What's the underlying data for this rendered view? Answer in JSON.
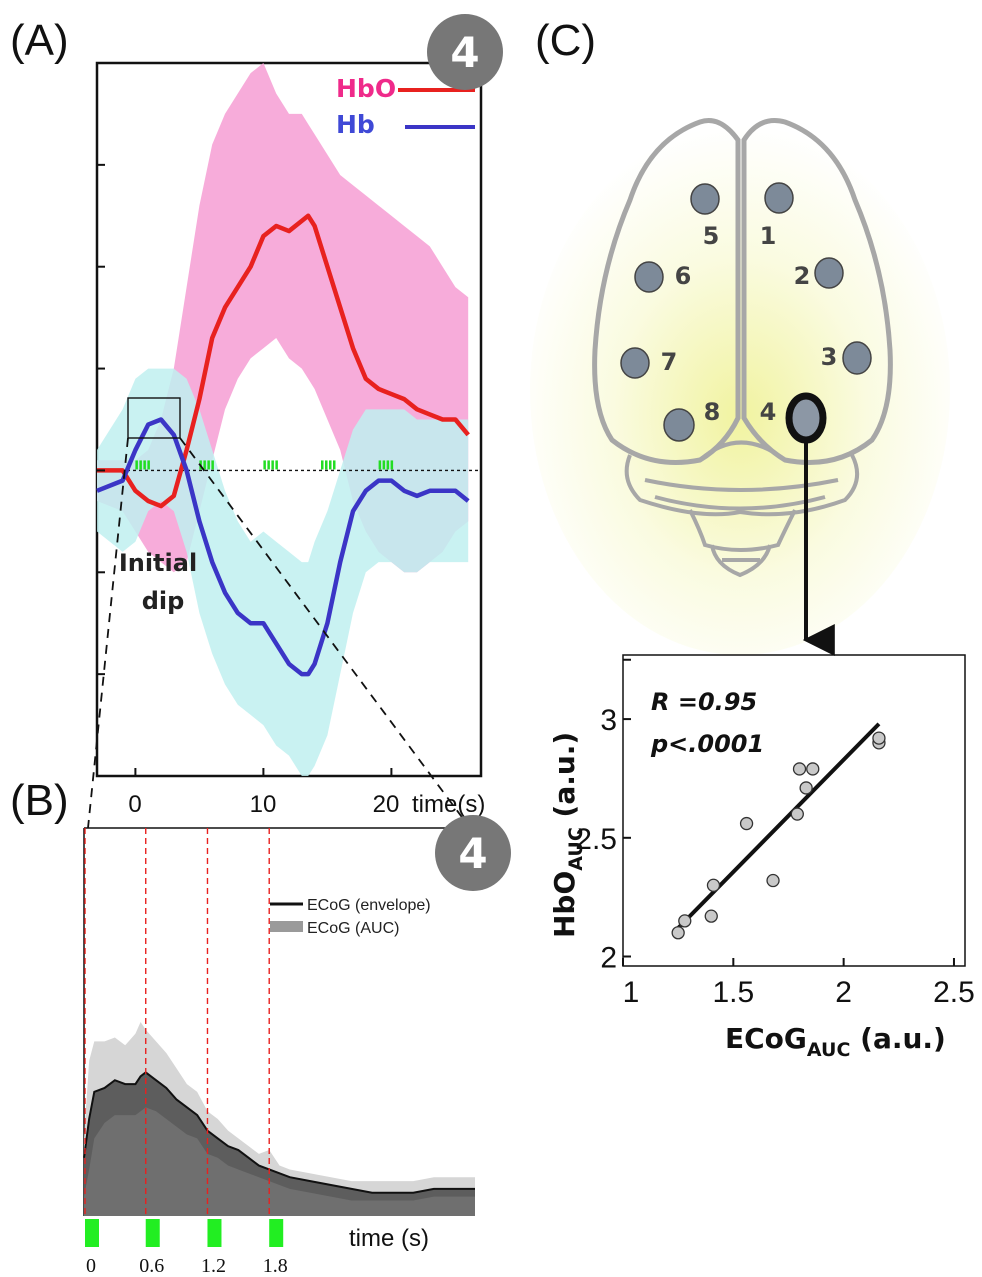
{
  "panels": {
    "A": "(A)",
    "B": "(B)",
    "C": "(C)"
  },
  "badges": {
    "a": "4",
    "b": "4"
  },
  "chart_data": [
    {
      "id": "A",
      "type": "line",
      "xlabel": "time(s)",
      "xticks": [
        "0",
        "10",
        "20"
      ],
      "xlim": [
        -3,
        27
      ],
      "ylim": [
        -3,
        4
      ],
      "legend": [
        "HbO",
        "Hb"
      ],
      "annotation": [
        "Initial",
        "dip"
      ],
      "stim_times": [
        0,
        5,
        10,
        14.5,
        19
      ],
      "series": [
        {
          "name": "HbO",
          "color": "#e8211f",
          "band_color": "#f7a8d8",
          "x": [
            -3,
            -1,
            0,
            1,
            2,
            3,
            4,
            5,
            6,
            7,
            8,
            9,
            10,
            11,
            12,
            13,
            13.5,
            14,
            15,
            16,
            17,
            18,
            19,
            20,
            21,
            22,
            23,
            24,
            25,
            26
          ],
          "y": [
            0,
            0,
            -0.2,
            -0.3,
            -0.35,
            -0.25,
            0.2,
            0.7,
            1.3,
            1.6,
            1.8,
            2.0,
            2.3,
            2.4,
            2.35,
            2.45,
            2.5,
            2.4,
            2.0,
            1.6,
            1.2,
            0.9,
            0.8,
            0.75,
            0.7,
            0.6,
            0.55,
            0.5,
            0.5,
            0.35
          ],
          "upper": [
            0.1,
            0.1,
            0.1,
            0.2,
            0.5,
            1.0,
            1.8,
            2.6,
            3.2,
            3.5,
            3.7,
            3.9,
            4.0,
            3.7,
            3.5,
            3.5,
            3.4,
            3.3,
            3.1,
            2.9,
            2.8,
            2.7,
            2.6,
            2.5,
            2.4,
            2.3,
            2.2,
            2.0,
            1.8,
            1.7
          ],
          "lower": [
            -0.3,
            -0.4,
            -0.6,
            -0.8,
            -0.9,
            -1.0,
            -0.9,
            -0.4,
            0.1,
            0.6,
            0.9,
            1.1,
            1.2,
            1.3,
            1.1,
            1.0,
            0.9,
            0.8,
            0.5,
            0.2,
            -0.3,
            -0.6,
            -0.8,
            -0.9,
            -1.0,
            -1.0,
            -0.9,
            -0.8,
            -0.6,
            -0.5
          ]
        },
        {
          "name": "Hb",
          "color": "#3b35c6",
          "band_color": "#bff0f0",
          "x": [
            -3,
            -1,
            0,
            1,
            2,
            3,
            4,
            5,
            6,
            7,
            8,
            9,
            10,
            11,
            12,
            13,
            13.5,
            14,
            15,
            16,
            17,
            18,
            19,
            20,
            21,
            22,
            23,
            24,
            25,
            26
          ],
          "y": [
            -0.2,
            -0.1,
            0.2,
            0.45,
            0.5,
            0.35,
            0.0,
            -0.5,
            -0.9,
            -1.2,
            -1.4,
            -1.5,
            -1.5,
            -1.7,
            -1.9,
            -2.0,
            -2.0,
            -1.9,
            -1.5,
            -0.9,
            -0.4,
            -0.2,
            -0.1,
            -0.1,
            -0.2,
            -0.25,
            -0.2,
            -0.2,
            -0.2,
            -0.3
          ],
          "upper": [
            0.2,
            0.6,
            0.9,
            1.0,
            1.0,
            1.0,
            0.9,
            0.6,
            0.2,
            -0.2,
            -0.5,
            -0.7,
            -0.6,
            -0.7,
            -0.8,
            -0.9,
            -0.9,
            -0.7,
            -0.4,
            0.0,
            0.4,
            0.6,
            0.6,
            0.6,
            0.6,
            0.5,
            0.5,
            0.5,
            0.5,
            0.5
          ],
          "lower": [
            -0.6,
            -0.8,
            -0.7,
            -0.4,
            -0.3,
            -0.4,
            -0.8,
            -1.4,
            -1.8,
            -2.1,
            -2.3,
            -2.4,
            -2.5,
            -2.7,
            -2.8,
            -3.0,
            -3.0,
            -2.9,
            -2.6,
            -2.0,
            -1.4,
            -1.0,
            -0.9,
            -0.9,
            -1.0,
            -1.0,
            -0.9,
            -0.9,
            -0.9,
            -0.9
          ]
        }
      ]
    },
    {
      "id": "B",
      "type": "area",
      "xlabel": "time (s)",
      "xticks": [
        "0",
        "0.6",
        "1.2",
        "1.8"
      ],
      "xtick_values": [
        0,
        0.6,
        1.2,
        1.8
      ],
      "xlim": [
        0,
        3.8
      ],
      "ylim": [
        0,
        1
      ],
      "legend": [
        "ECoG (envelope)",
        "ECoG (AUC)"
      ],
      "stim_times": [
        0,
        0.6,
        1.2,
        1.8
      ],
      "series": [
        {
          "name": "ECoG (envelope)",
          "x": [
            0,
            0.05,
            0.1,
            0.2,
            0.3,
            0.4,
            0.5,
            0.55,
            0.6,
            0.7,
            0.8,
            0.9,
            1.0,
            1.1,
            1.2,
            1.3,
            1.4,
            1.5,
            1.6,
            1.7,
            1.8,
            1.9,
            2.0,
            2.2,
            2.4,
            2.6,
            2.8,
            3.0,
            3.2,
            3.4,
            3.6,
            3.8
          ],
          "y": [
            0.15,
            0.25,
            0.32,
            0.33,
            0.35,
            0.34,
            0.34,
            0.36,
            0.37,
            0.35,
            0.33,
            0.3,
            0.28,
            0.26,
            0.22,
            0.2,
            0.18,
            0.17,
            0.15,
            0.13,
            0.12,
            0.11,
            0.1,
            0.09,
            0.08,
            0.07,
            0.06,
            0.06,
            0.06,
            0.07,
            0.07,
            0.07
          ],
          "upper": [
            0.2,
            0.4,
            0.45,
            0.45,
            0.46,
            0.44,
            0.47,
            0.5,
            0.48,
            0.45,
            0.42,
            0.38,
            0.34,
            0.32,
            0.27,
            0.25,
            0.22,
            0.2,
            0.18,
            0.16,
            0.17,
            0.13,
            0.12,
            0.11,
            0.1,
            0.09,
            0.09,
            0.09,
            0.09,
            0.1,
            0.1,
            0.1
          ],
          "lower": [
            0.05,
            0.12,
            0.2,
            0.24,
            0.26,
            0.26,
            0.26,
            0.27,
            0.28,
            0.27,
            0.25,
            0.23,
            0.21,
            0.2,
            0.16,
            0.15,
            0.13,
            0.12,
            0.11,
            0.1,
            0.09,
            0.08,
            0.07,
            0.06,
            0.05,
            0.04,
            0.04,
            0.04,
            0.04,
            0.05,
            0.05,
            0.05
          ]
        }
      ]
    },
    {
      "id": "C",
      "type": "scatter",
      "xlabel": "ECoG",
      "xlabel_sub": "AUC",
      "xlabel_unit": " (a.u.)",
      "ylabel": "HbO",
      "ylabel_sub": "AUC",
      "ylabel_unit": " (a.u.)",
      "xticks": [
        "1",
        "1.5",
        "2",
        "2.5"
      ],
      "xtick_values": [
        1,
        1.5,
        2,
        2.5
      ],
      "yticks": [
        "2",
        "2.5",
        "3"
      ],
      "ytick_values": [
        2,
        2.5,
        3
      ],
      "xlim": [
        1,
        2.55
      ],
      "ylim": [
        1.96,
        3.27
      ],
      "annotations": [
        "R =0.95",
        "p<.0001"
      ],
      "points": [
        {
          "x": 1.25,
          "y": 2.1
        },
        {
          "x": 1.28,
          "y": 2.15
        },
        {
          "x": 1.4,
          "y": 2.17
        },
        {
          "x": 1.41,
          "y": 2.3
        },
        {
          "x": 1.56,
          "y": 2.56
        },
        {
          "x": 1.68,
          "y": 2.32
        },
        {
          "x": 1.79,
          "y": 2.6
        },
        {
          "x": 1.8,
          "y": 2.79
        },
        {
          "x": 1.83,
          "y": 2.71
        },
        {
          "x": 1.86,
          "y": 2.79
        },
        {
          "x": 2.16,
          "y": 2.9
        },
        {
          "x": 2.16,
          "y": 2.92
        }
      ],
      "fit": {
        "x": [
          1.25,
          2.16
        ],
        "y": [
          2.12,
          2.98
        ]
      }
    }
  ],
  "brain": {
    "regions": [
      "1",
      "2",
      "3",
      "4",
      "5",
      "6",
      "7",
      "8"
    ],
    "highlighted_region": "4"
  }
}
